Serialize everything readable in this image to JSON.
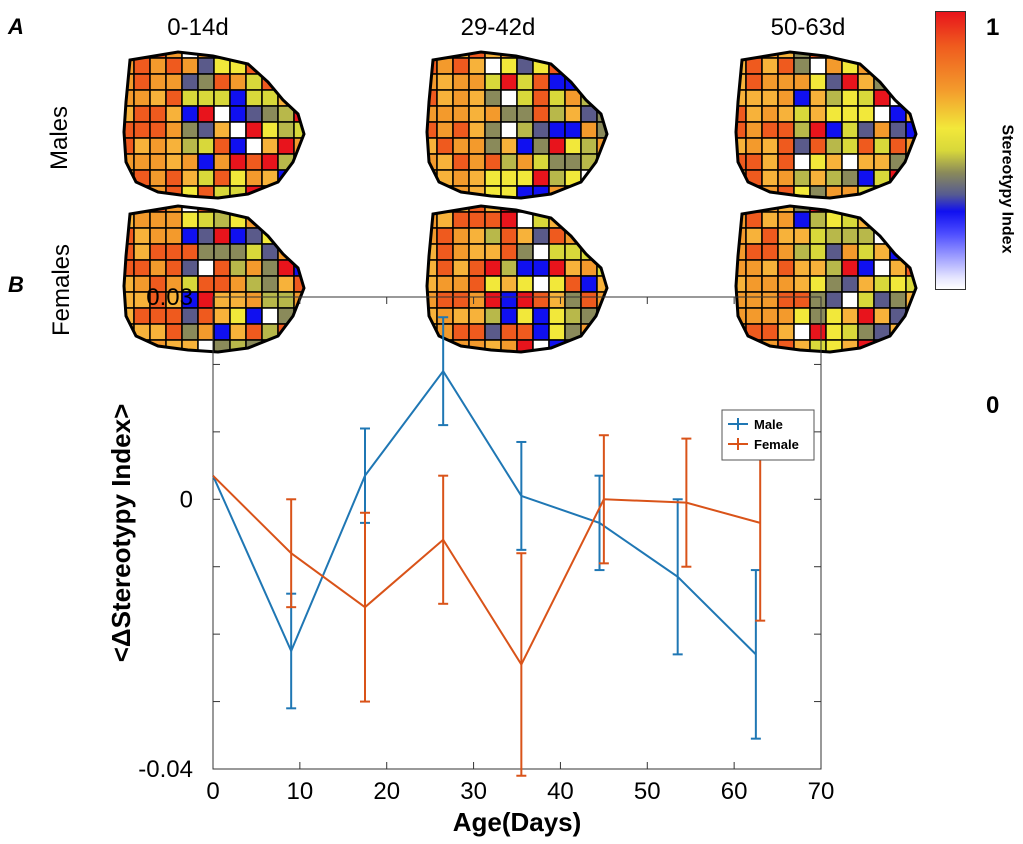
{
  "panel_a": {
    "letter": "A",
    "columns": [
      "0-14d",
      "29-42d",
      "50-63d"
    ],
    "rows": [
      "Males",
      "Females"
    ],
    "colorbar": {
      "max_label": "1",
      "min_label": "0",
      "title": "Stereotypy Index",
      "colors": {
        "high": "#e8141c",
        "mid_high": "#f39a2c",
        "mid": "#f2e83a",
        "mid_low": "#8a8a5a",
        "low": "#1010f0",
        "zero": "#ffffff"
      }
    }
  },
  "panel_b": {
    "letter": "B"
  },
  "chart_data": {
    "type": "line",
    "title": "",
    "xlabel": "Age(Days)",
    "ylabel": "<ΔStereotypy Index>",
    "xlim": [
      0,
      70
    ],
    "ylim": [
      -0.04,
      0.03
    ],
    "xticks": [
      0,
      10,
      20,
      30,
      40,
      50,
      60,
      70
    ],
    "yticks": [
      0.03,
      0,
      -0.04
    ],
    "ytick_labels": [
      "0.03",
      "0",
      "-0.04"
    ],
    "legend_position": "top-right",
    "series": [
      {
        "name": "Male",
        "color": "#1f77b4",
        "x": [
          0,
          9,
          17.5,
          26.5,
          35.5,
          44.5,
          53.5,
          62.5
        ],
        "y": [
          0.0035,
          -0.0225,
          0.0035,
          0.019,
          0.0005,
          -0.0035,
          -0.0115,
          -0.023
        ],
        "err": [
          0,
          0.0085,
          0.007,
          0.008,
          0.008,
          0.007,
          0.0115,
          0.0125
        ]
      },
      {
        "name": "Female",
        "color": "#d95319",
        "x": [
          0,
          9,
          17.5,
          26.5,
          35.5,
          45,
          54.5,
          63
        ],
        "y": [
          0.0035,
          -0.008,
          -0.016,
          -0.006,
          -0.0245,
          0.0,
          -0.0005,
          -0.0035
        ],
        "err": [
          0,
          0.008,
          0.014,
          0.0095,
          0.0165,
          0.0095,
          0.0095,
          0.0145
        ]
      }
    ]
  }
}
